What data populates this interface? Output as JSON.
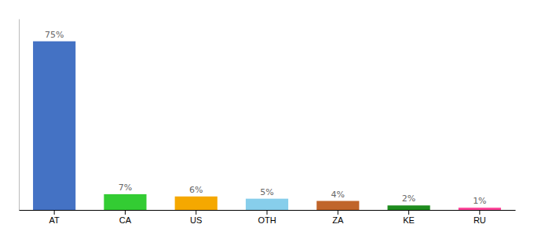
{
  "chart_data": {
    "type": "bar",
    "categories": [
      "AT",
      "CA",
      "US",
      "OTH",
      "ZA",
      "KE",
      "RU"
    ],
    "values": [
      75,
      7,
      6,
      5,
      4,
      2,
      1
    ],
    "value_labels": [
      "75%",
      "7%",
      "6%",
      "5%",
      "4%",
      "2%",
      "1%"
    ],
    "colors": [
      "#4472c4",
      "#33cc33",
      "#f5a800",
      "#87ceeb",
      "#c0652b",
      "#1e8c1e",
      "#ff4499"
    ],
    "ylim": [
      0,
      85
    ],
    "data_labels": true,
    "tick_labels": "x"
  }
}
